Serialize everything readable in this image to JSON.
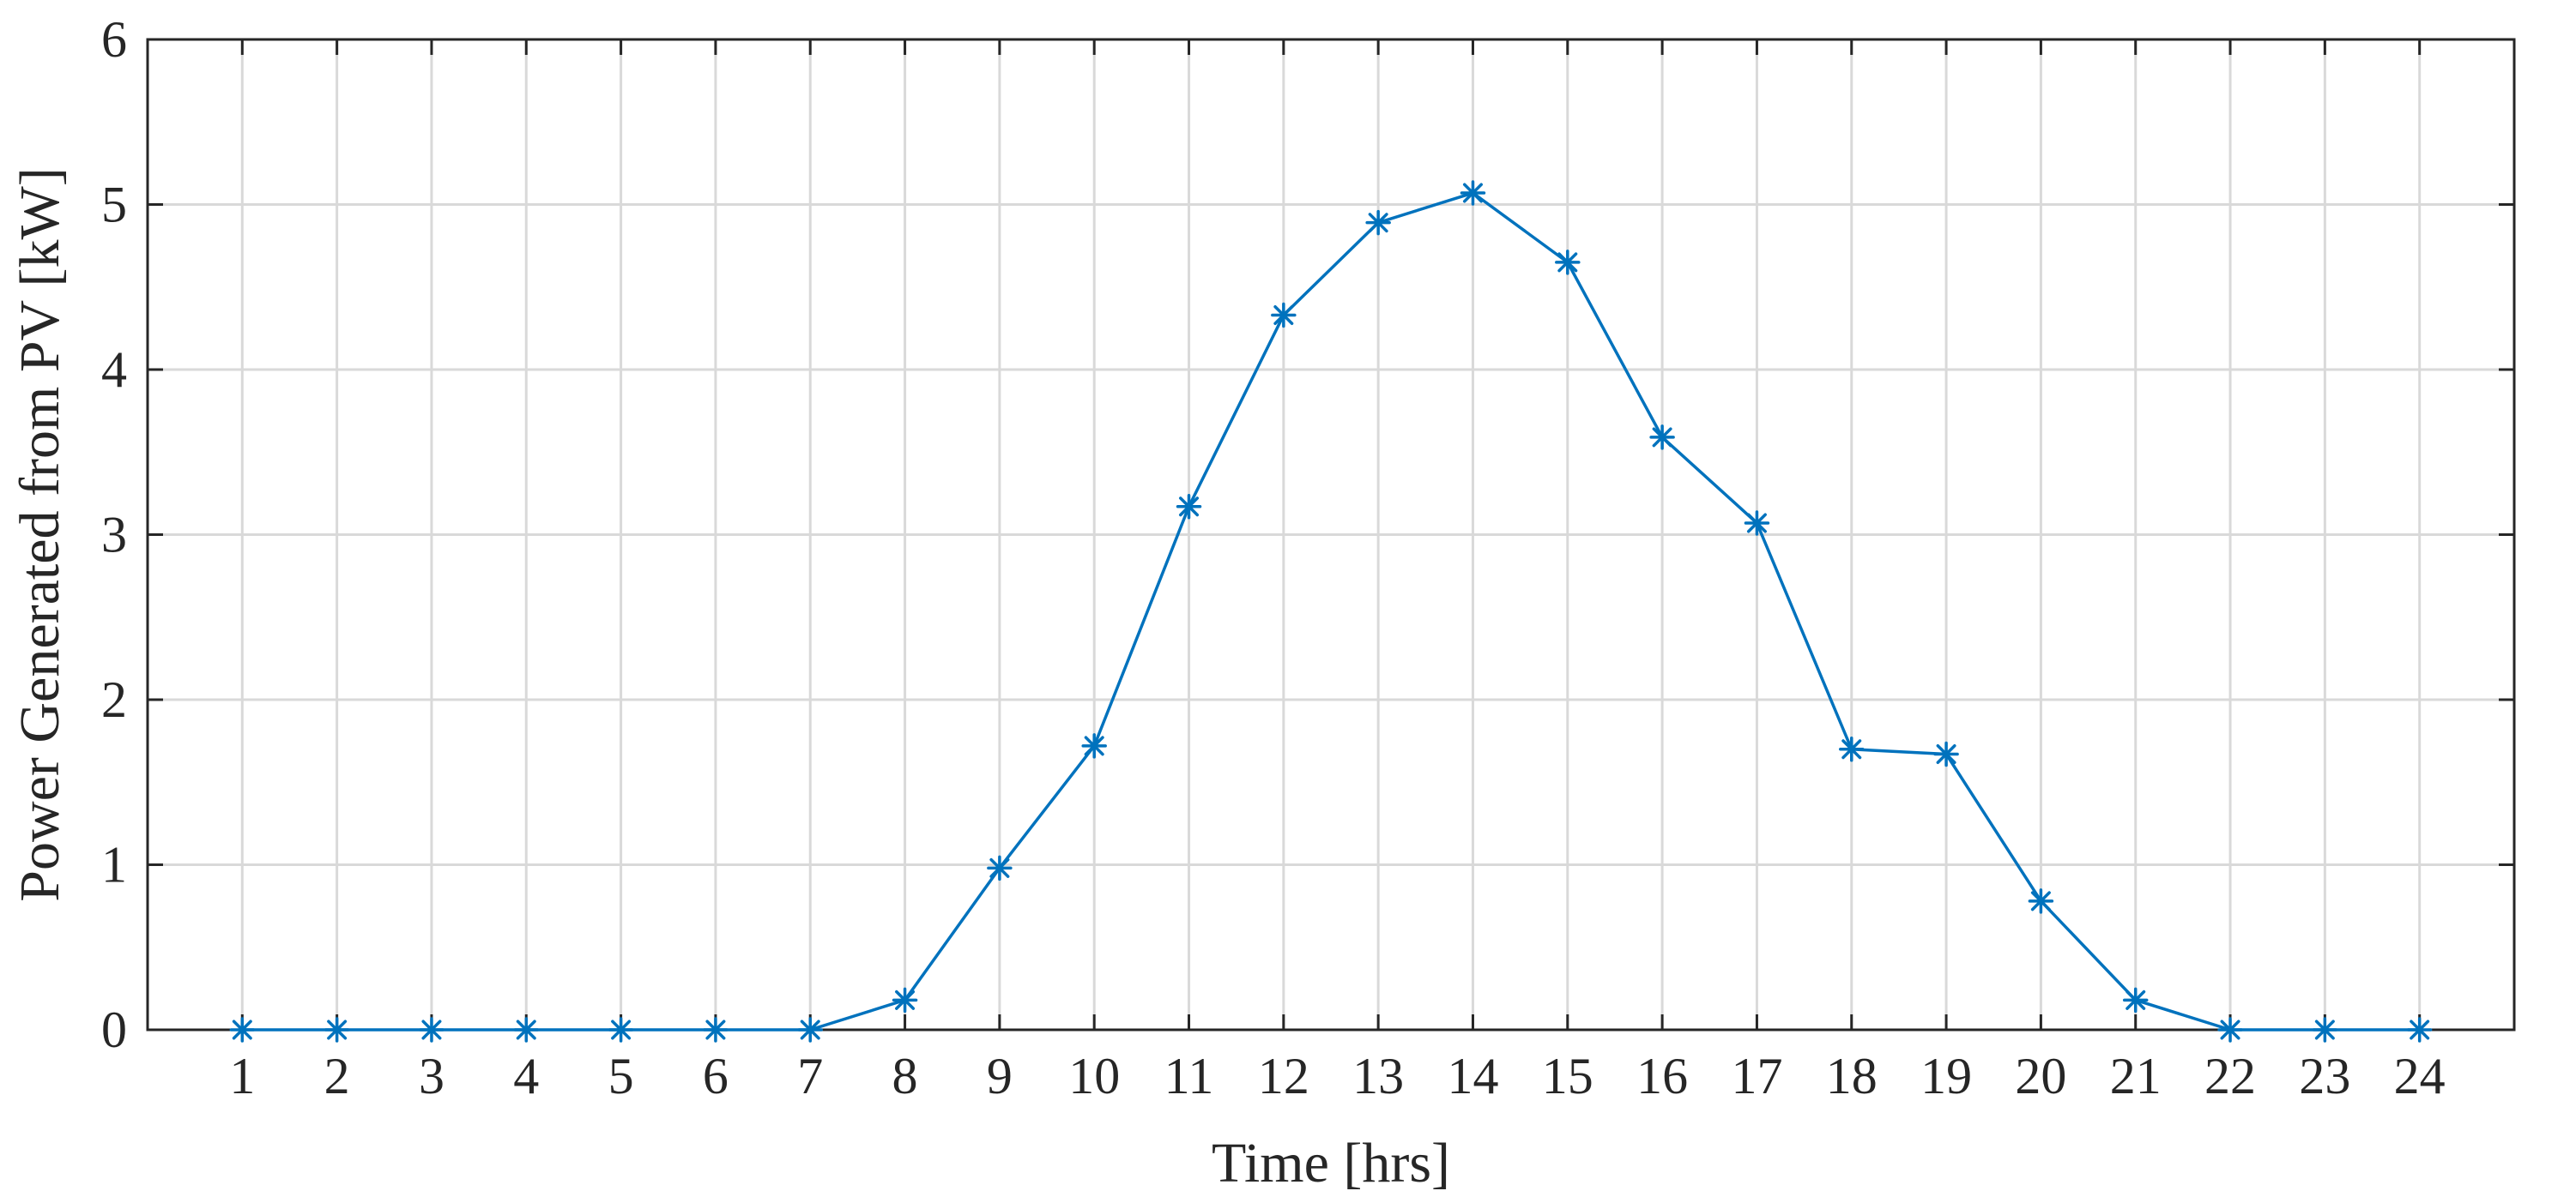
{
  "chart_data": {
    "type": "line",
    "title": "",
    "xlabel": "Time [hrs]",
    "ylabel": "Power Generated from PV [kW]",
    "x": [
      1,
      2,
      3,
      4,
      5,
      6,
      7,
      8,
      9,
      10,
      11,
      12,
      13,
      14,
      15,
      16,
      17,
      18,
      19,
      20,
      21,
      22,
      23,
      24
    ],
    "x_tick_labels": [
      "1",
      "2",
      "3",
      "4",
      "5",
      "6",
      "7",
      "8",
      "9",
      "10",
      "11",
      "12",
      "13",
      "14",
      "15",
      "16",
      "17",
      "18",
      "19",
      "20",
      "21",
      "22",
      "23",
      "24"
    ],
    "y_tick_labels": [
      "0",
      "1",
      "2",
      "3",
      "4",
      "5",
      "6"
    ],
    "xlim": [
      0,
      25
    ],
    "ylim": [
      0,
      6
    ],
    "grid": true,
    "legend": "none",
    "series": [
      {
        "color": "#0072bd",
        "marker": "asterisk",
        "values": [
          0,
          0,
          0,
          0,
          0,
          0,
          0,
          0.18,
          0.98,
          1.72,
          3.17,
          4.33,
          4.89,
          5.07,
          4.65,
          3.59,
          3.07,
          1.7,
          1.67,
          0.78,
          0.18,
          0,
          0,
          0
        ]
      }
    ]
  }
}
